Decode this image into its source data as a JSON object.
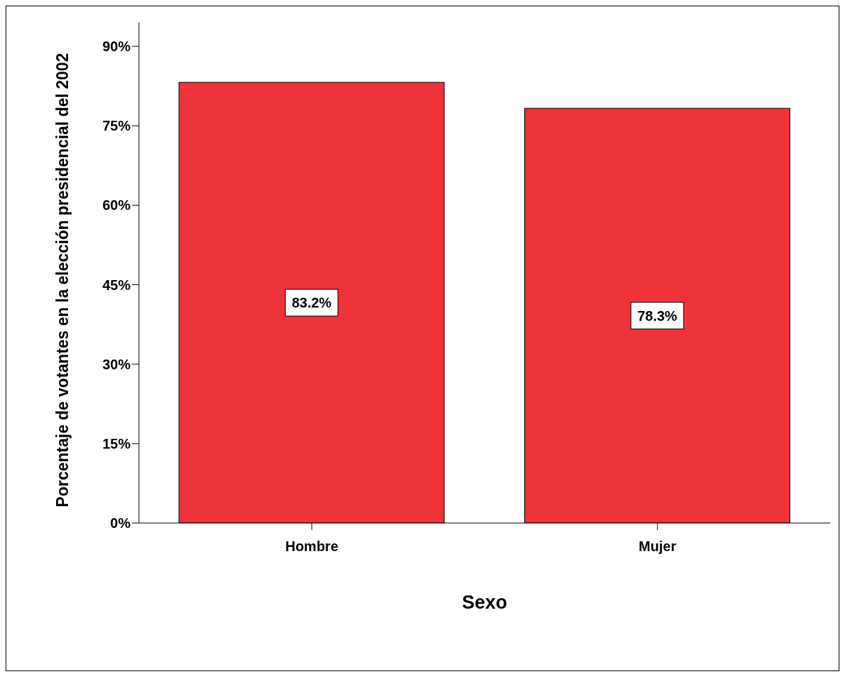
{
  "chart_data": {
    "type": "bar",
    "xlabel": "Sexo",
    "ylabel": "Porcentaje de votantes en la elección presidencial del 2002",
    "categories": [
      "Hombre",
      "Mujer"
    ],
    "values": [
      83.2,
      78.3
    ],
    "colors": [
      "#ef333b",
      "#ef333b"
    ],
    "value_labels": [
      "83.2%",
      "78.3%"
    ],
    "ylim": [
      0,
      94.5
    ],
    "yticks": [
      {
        "value": 0,
        "label": "0%"
      },
      {
        "value": 15,
        "label": "15%"
      },
      {
        "value": 30,
        "label": "30%"
      },
      {
        "value": 45,
        "label": "45%"
      },
      {
        "value": 60,
        "label": "60%"
      },
      {
        "value": 75,
        "label": "75%"
      },
      {
        "value": 90,
        "label": "90%"
      }
    ],
    "grid": false,
    "legend": false
  }
}
